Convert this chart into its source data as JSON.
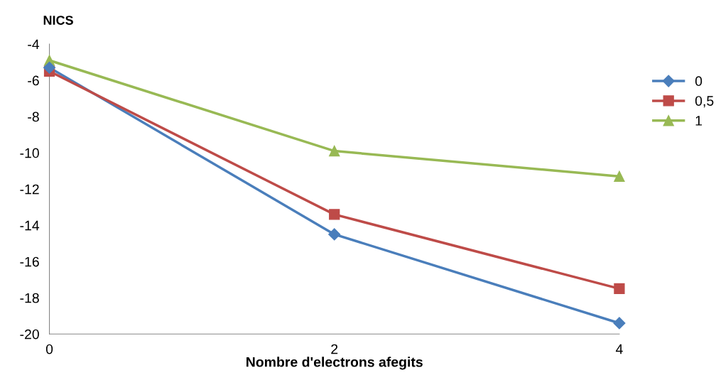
{
  "chart_data": {
    "type": "line",
    "xlabel": "Nombre d'electrons afegits",
    "ylabel": "NICS",
    "x": [
      0,
      2,
      4
    ],
    "series": [
      {
        "name": "0",
        "color": "#4a7ebb",
        "values": [
          -5.3,
          -14.5,
          -19.4
        ],
        "marker": "diamond"
      },
      {
        "name": "0,5",
        "color": "#be4b48",
        "values": [
          -5.5,
          -13.4,
          -17.5
        ],
        "marker": "square"
      },
      {
        "name": "1",
        "color": "#98b954",
        "values": [
          -4.9,
          -9.9,
          -11.3
        ],
        "marker": "triangle"
      }
    ],
    "xlim": [
      0,
      4
    ],
    "xticks": [
      0,
      2,
      4
    ],
    "ylim": [
      -20,
      -4
    ],
    "yticks": [
      -20,
      -18,
      -16,
      -14,
      -12,
      -10,
      -8,
      -6,
      -4
    ],
    "grid": false,
    "legend": "right",
    "line_style": "solid"
  }
}
